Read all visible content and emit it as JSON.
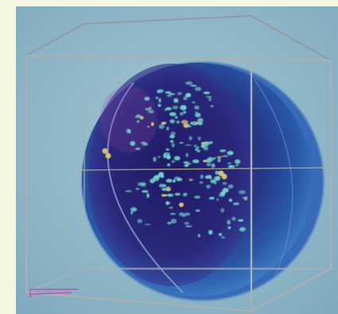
{
  "image": {
    "subject": "3d-sphere-visualization",
    "palette": {
      "background_mat": "#f4f6df",
      "photo_background": "#8db7c9",
      "sphere_outer": "#2f63b6",
      "sphere_inner": "#221f73",
      "bounding_box": "#9aa3a8",
      "particles": "#6fd6c8",
      "highlight_particles": "#e6d36a",
      "corner_marker": "#c24fb8"
    }
  }
}
